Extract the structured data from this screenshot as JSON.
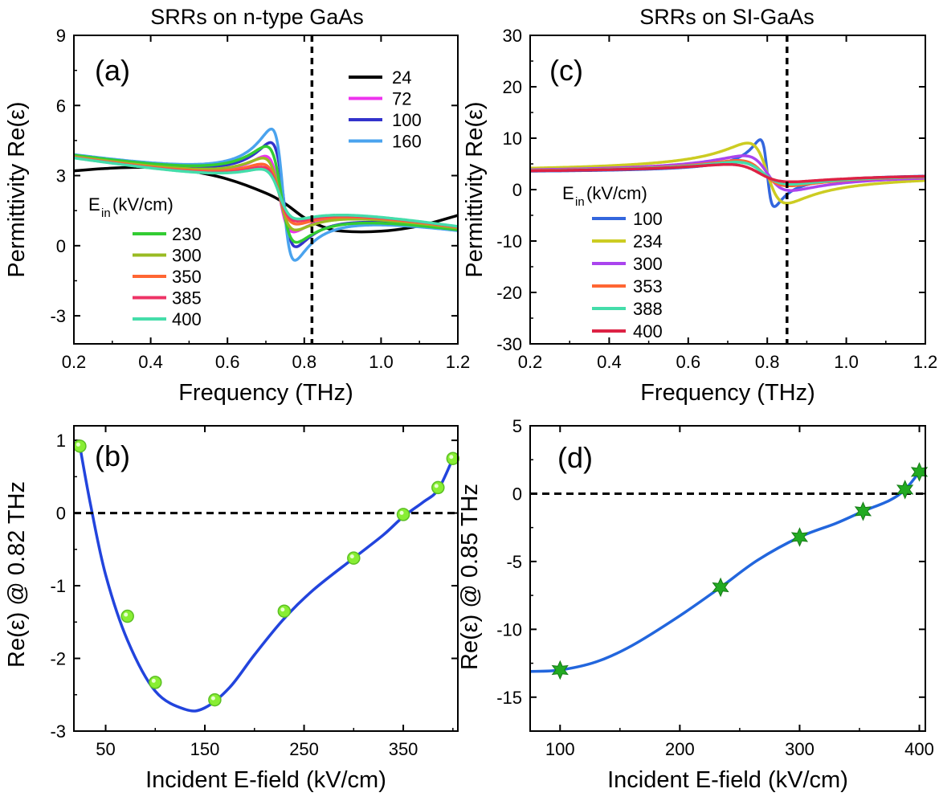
{
  "chart_data": [
    {
      "panel": "a",
      "type": "line",
      "title": "SRRs on n-type GaAs",
      "panel_label": "(a)",
      "xlabel": "Frequency (THz)",
      "ylabel": "Permittivity Re(ε)",
      "xlim": [
        0.2,
        1.2
      ],
      "ylim": [
        -4.2,
        9
      ],
      "xticks": [
        "0.2",
        "0.4",
        "0.6",
        "0.8",
        "1.0",
        "1.2"
      ],
      "xtick_values": [
        0.2,
        0.4,
        0.6,
        0.8,
        1.0,
        1.2
      ],
      "yticks": [
        "9",
        "6",
        "3",
        "0",
        "-3"
      ],
      "ytick_values": [
        9,
        6,
        3,
        0,
        -3
      ],
      "vline_x": 0.82,
      "legend_title_main": "E",
      "legend_title_sub": "in",
      "legend_title_unit": " (kV/cm)",
      "grid": false,
      "series": [
        {
          "name": "24",
          "color": "#000000",
          "points": [
            [
              0.2,
              3.2
            ],
            [
              0.3,
              3.32
            ],
            [
              0.4,
              3.35
            ],
            [
              0.5,
              3.2
            ],
            [
              0.6,
              2.85
            ],
            [
              0.7,
              2.25
            ],
            [
              0.75,
              1.8
            ],
            [
              0.8,
              1.2
            ],
            [
              0.85,
              0.8
            ],
            [
              0.9,
              0.62
            ],
            [
              1.0,
              0.62
            ],
            [
              1.1,
              0.85
            ],
            [
              1.2,
              1.3
            ]
          ]
        },
        {
          "name": "72",
          "color": "#ee33ee",
          "f0": 0.735,
          "w": 0.035,
          "A": 0.235,
          "b0": 3.6,
          "b1": -2.6
        },
        {
          "name": "100",
          "color": "#3333cc",
          "f0": 0.745,
          "w": 0.032,
          "A": 0.33,
          "b0": 3.6,
          "b1": -2.6
        },
        {
          "name": "160",
          "color": "#4aa3ee",
          "f0": 0.745,
          "w": 0.03,
          "A": 0.42,
          "b0": 3.6,
          "b1": -2.6
        },
        {
          "name": "230",
          "color": "#33cc33",
          "f0": 0.74,
          "w": 0.038,
          "A": 0.3,
          "b0": 3.6,
          "b1": -2.6
        },
        {
          "name": "300",
          "color": "#99bb22",
          "f0": 0.735,
          "w": 0.04,
          "A": 0.22,
          "b0": 3.6,
          "b1": -2.6
        },
        {
          "name": "350",
          "color": "#ff6633",
          "f0": 0.735,
          "w": 0.042,
          "A": 0.18,
          "b0": 3.6,
          "b1": -2.6
        },
        {
          "name": "385",
          "color": "#ee3366",
          "f0": 0.735,
          "w": 0.042,
          "A": 0.16,
          "b0": 3.6,
          "b1": -2.6
        },
        {
          "name": "400",
          "color": "#44ddaa",
          "f0": 0.735,
          "w": 0.044,
          "A": 0.145,
          "b0": 3.6,
          "b1": -2.6
        }
      ]
    },
    {
      "panel": "c",
      "type": "line",
      "title": "SRRs on SI-GaAs",
      "panel_label": "(c)",
      "xlabel": "Frequency (THz)",
      "ylabel": "Permittivity Re(ε)",
      "xlim": [
        0.2,
        1.2
      ],
      "ylim": [
        -30,
        30
      ],
      "xticks": [
        "0.2",
        "0.4",
        "0.6",
        "0.8",
        "1.0",
        "1.2"
      ],
      "xtick_values": [
        0.2,
        0.4,
        0.6,
        0.8,
        1.0,
        1.2
      ],
      "yticks": [
        "30",
        "20",
        "10",
        "0",
        "-10",
        "-20",
        "-30"
      ],
      "ytick_values": [
        30,
        20,
        10,
        0,
        -10,
        -20,
        -30
      ],
      "vline_x": 0.85,
      "legend_title_main": "E",
      "legend_title_sub": "in",
      "legend_title_unit": " (kV/cm)",
      "grid": false,
      "series": [
        {
          "name": "100",
          "color": "#3366dd",
          "f0": 0.8,
          "w": 0.018,
          "A": 1.0,
          "b0": 3.2,
          "b1": 0
        },
        {
          "name": "234",
          "color": "#cccc22",
          "f0": 0.8,
          "w": 0.05,
          "A": 0.9,
          "b0": 3.2,
          "b1": 0
        },
        {
          "name": "300",
          "color": "#aa44ee",
          "f0": 0.8,
          "w": 0.06,
          "A": 0.52,
          "b0": 3.2,
          "b1": 0
        },
        {
          "name": "353",
          "color": "#ff6633",
          "f0": 0.79,
          "w": 0.065,
          "A": 0.38,
          "b0": 3.2,
          "b1": 0
        },
        {
          "name": "388",
          "color": "#44ddaa",
          "f0": 0.79,
          "w": 0.07,
          "A": 0.33,
          "b0": 3.2,
          "b1": 0
        },
        {
          "name": "400",
          "color": "#dd2244",
          "f0": 0.78,
          "w": 0.08,
          "A": 0.26,
          "b0": 3.2,
          "b1": 0
        }
      ]
    },
    {
      "panel": "b",
      "type": "scatter",
      "panel_label": "(b)",
      "xlabel": "Incident E-field (kV/cm)",
      "ylabel": "Re(ε) @ 0.82 THz",
      "xlim": [
        18,
        405
      ],
      "ylim": [
        -3,
        1.2
      ],
      "xticks": [
        "50",
        "150",
        "250",
        "350"
      ],
      "xtick_values": [
        50,
        150,
        250,
        350
      ],
      "yticks": [
        "1",
        "0",
        "-1",
        "-2",
        "-3"
      ],
      "ytick_values": [
        1,
        0,
        -1,
        -2,
        -3
      ],
      "hline_y": 0,
      "marker": "circle",
      "marker_color": "#88ee33",
      "line_color": "#2244dd",
      "points": [
        [
          24,
          0.92
        ],
        [
          72,
          -1.42
        ],
        [
          100,
          -2.33
        ],
        [
          160,
          -2.57
        ],
        [
          230,
          -1.35
        ],
        [
          300,
          -0.62
        ],
        [
          350,
          -0.02
        ],
        [
          385,
          0.35
        ],
        [
          400,
          0.75
        ]
      ],
      "fit": [
        [
          24,
          0.92
        ],
        [
          35,
          0.1
        ],
        [
          50,
          -0.85
        ],
        [
          72,
          -1.75
        ],
        [
          100,
          -2.45
        ],
        [
          130,
          -2.7
        ],
        [
          150,
          -2.68
        ],
        [
          175,
          -2.4
        ],
        [
          200,
          -1.95
        ],
        [
          230,
          -1.45
        ],
        [
          260,
          -1.05
        ],
        [
          300,
          -0.62
        ],
        [
          330,
          -0.3
        ],
        [
          350,
          -0.05
        ],
        [
          370,
          0.15
        ],
        [
          385,
          0.32
        ],
        [
          400,
          0.75
        ]
      ],
      "grid": false
    },
    {
      "panel": "d",
      "type": "scatter",
      "panel_label": "(d)",
      "xlabel": "Incident E-field  (kV/cm)",
      "ylabel": "Re(ε) @ 0.85 THz",
      "xlim": [
        75,
        405
      ],
      "ylim": [
        -17.5,
        5
      ],
      "xticks": [
        "100",
        "200",
        "300",
        "400"
      ],
      "xtick_values": [
        100,
        200,
        300,
        400
      ],
      "yticks": [
        "5",
        "0",
        "-5",
        "-10",
        "-15"
      ],
      "ytick_values": [
        5,
        0,
        -5,
        -10,
        -15
      ],
      "hline_y": 0,
      "marker": "star",
      "marker_color": "#22aa22",
      "line_color": "#2266dd",
      "points": [
        [
          100,
          -13
        ],
        [
          234,
          -6.9
        ],
        [
          300,
          -3.2
        ],
        [
          353,
          -1.3
        ],
        [
          388,
          0.3
        ],
        [
          400,
          1.6
        ]
      ],
      "fit": [
        [
          75,
          -13.1
        ],
        [
          100,
          -13.0
        ],
        [
          130,
          -12.4
        ],
        [
          160,
          -11.2
        ],
        [
          200,
          -9.0
        ],
        [
          234,
          -6.9
        ],
        [
          265,
          -4.9
        ],
        [
          300,
          -3.2
        ],
        [
          330,
          -2.2
        ],
        [
          353,
          -1.3
        ],
        [
          375,
          -0.5
        ],
        [
          388,
          0.3
        ],
        [
          400,
          1.6
        ]
      ],
      "grid": false
    }
  ]
}
